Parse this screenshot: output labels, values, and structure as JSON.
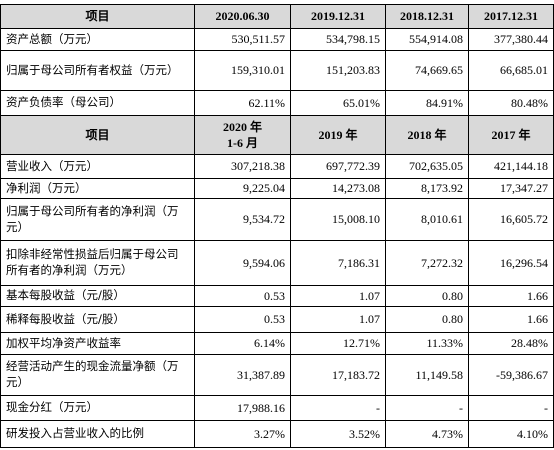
{
  "table1": {
    "header": [
      "项目",
      "2020.06.30",
      "2019.12.31",
      "2018.12.31",
      "2017.12.31"
    ],
    "rows": [
      [
        "资产总额（万元）",
        "530,511.57",
        "534,798.15",
        "554,914.08",
        "377,380.44"
      ],
      [
        "归属于母公司所有者权益（万元）",
        "159,310.01",
        "151,203.83",
        "74,669.65",
        "66,685.01"
      ],
      [
        "资产负债率（母公司）",
        "62.11%",
        "65.01%",
        "84.91%",
        "80.48%"
      ]
    ]
  },
  "table2": {
    "header": [
      "项目",
      "2020 年\n1-6 月",
      "2019 年",
      "2018 年",
      "2017 年"
    ],
    "rows": [
      [
        "营业收入（万元）",
        "307,218.38",
        "697,772.39",
        "702,635.05",
        "421,144.18"
      ],
      [
        "净利润（万元）",
        "9,225.04",
        "14,273.08",
        "8,173.92",
        "17,347.27"
      ],
      [
        "归属于母公司所有者的净利润（万元）",
        "9,534.72",
        "15,008.10",
        "8,010.61",
        "16,605.72"
      ],
      [
        "扣除非经常性损益后归属于母公司所有者的净利润（万元）",
        "9,594.06",
        "7,186.31",
        "7,272.32",
        "16,296.54"
      ],
      [
        "基本每股收益（元/股）",
        "0.53",
        "1.07",
        "0.80",
        "1.66"
      ],
      [
        "稀释每股收益（元/股）",
        "0.53",
        "1.07",
        "0.80",
        "1.66"
      ],
      [
        "加权平均净资产收益率",
        "6.14%",
        "12.71%",
        "11.33%",
        "28.48%"
      ],
      [
        "经营活动产生的现金流量净额（万元）",
        "31,387.89",
        "17,183.72",
        "11,149.58",
        "-59,386.67"
      ],
      [
        "现金分红（万元）",
        "17,988.16",
        "-",
        "-",
        "-"
      ],
      [
        "研发投入占营业收入的比例",
        "3.27%",
        "3.52%",
        "4.73%",
        "4.10%"
      ]
    ]
  }
}
